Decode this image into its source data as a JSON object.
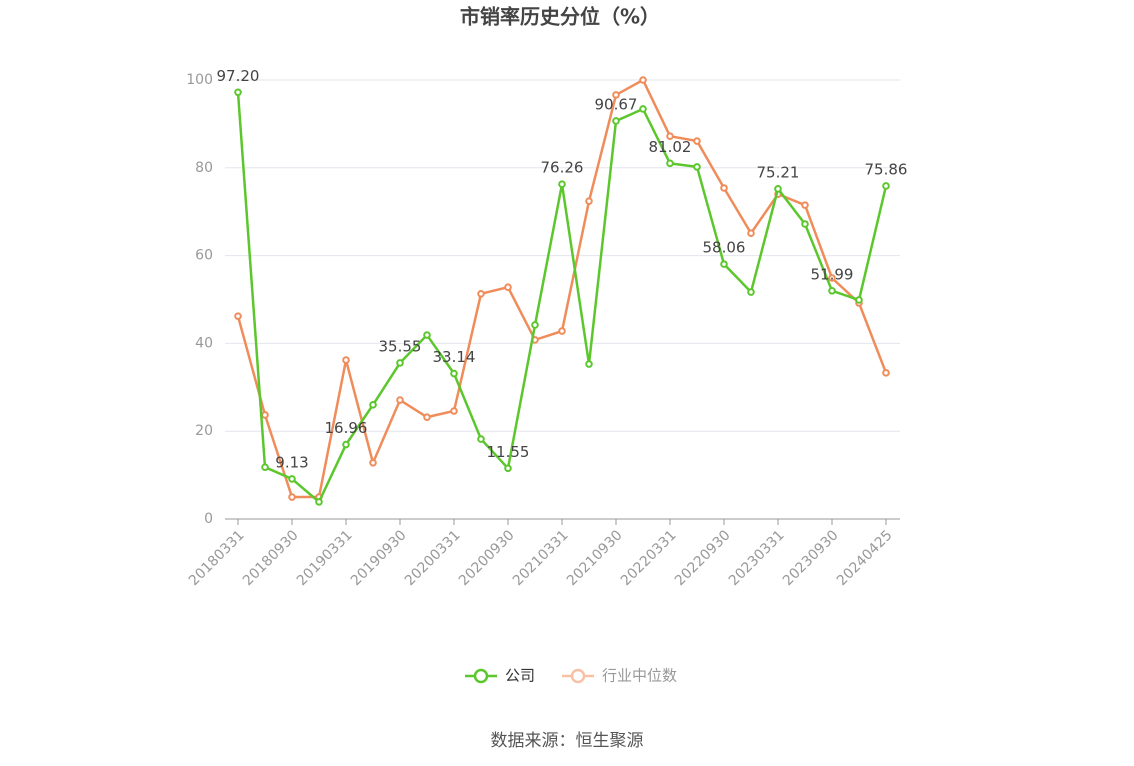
{
  "chart_data": {
    "type": "line",
    "title": "市销率历史分位（%）",
    "source": "数据来源：恒生聚源",
    "categories": [
      "20180331",
      null,
      "20180930",
      null,
      "20190331",
      null,
      "20190930",
      null,
      "20200331",
      null,
      "20200930",
      null,
      "20210331",
      null,
      "20210930",
      null,
      "20220331",
      null,
      "20220930",
      null,
      "20230331",
      null,
      "20230930",
      null,
      "20240425"
    ],
    "series": [
      {
        "name": "公司",
        "color": "#5cc72d",
        "values": [
          97.2,
          11.8,
          9.13,
          3.9,
          16.96,
          26.0,
          35.55,
          41.9,
          33.14,
          18.2,
          11.55,
          44.2,
          76.26,
          35.3,
          90.67,
          93.4,
          81.02,
          80.2,
          58.06,
          51.7,
          75.21,
          67.2,
          51.99,
          49.9,
          75.86
        ],
        "value_labels": [
          "97.20",
          null,
          "9.13",
          null,
          "16.96",
          null,
          "35.55",
          null,
          "33.14",
          null,
          "11.55",
          null,
          "76.26",
          null,
          "90.67",
          null,
          "81.02",
          null,
          "58.06",
          null,
          "75.21",
          null,
          "51.99",
          null,
          "75.86"
        ]
      },
      {
        "name": "行业中位数",
        "color": "#f08c5a",
        "values": [
          46.2,
          23.7,
          5.0,
          5.0,
          36.2,
          12.8,
          27.1,
          23.2,
          24.6,
          51.3,
          52.8,
          40.8,
          42.8,
          72.4,
          96.6,
          100,
          87.2,
          86.1,
          75.4,
          65.1,
          74.0,
          71.5,
          54.9,
          49.2,
          33.3
        ]
      }
    ],
    "ylim": [
      0,
      100
    ],
    "yticks": [
      0,
      20,
      40,
      60,
      80,
      100
    ],
    "grid": true
  }
}
